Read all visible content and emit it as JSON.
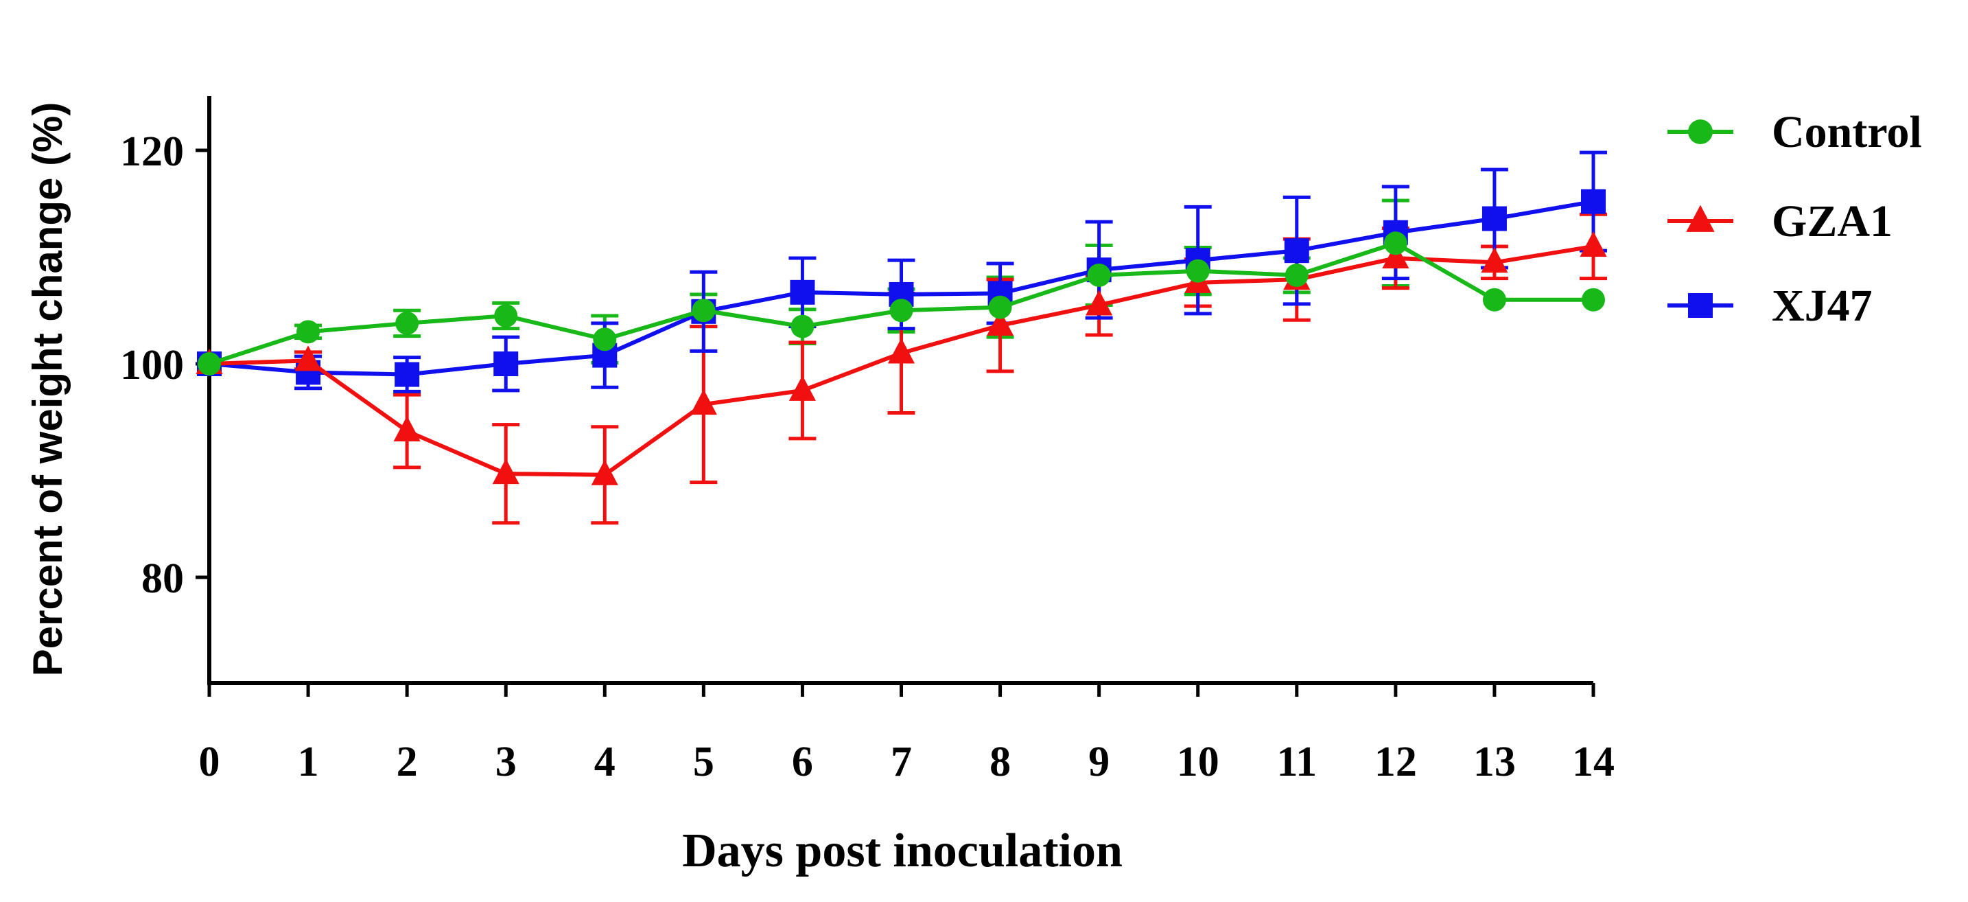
{
  "chart_data": {
    "type": "line",
    "title": "",
    "xlabel": "Days post inoculation",
    "ylabel": "Percent of weight change (%)",
    "x": [
      0,
      1,
      2,
      3,
      4,
      5,
      6,
      7,
      8,
      9,
      10,
      11,
      12,
      13,
      14
    ],
    "xlim": [
      0,
      14
    ],
    "ylim": [
      70,
      125
    ],
    "yticks": [
      80,
      100,
      120
    ],
    "grid": false,
    "legend_position": "right",
    "series": [
      {
        "name": "Control",
        "color": "#18B818",
        "marker": "circle",
        "values": [
          100,
          103,
          103.8,
          104.5,
          102.3,
          105,
          103.5,
          105,
          105.3,
          108.3,
          108.7,
          108.3,
          111.3,
          106,
          106
        ],
        "errors": [
          0,
          0.6,
          1.2,
          1.2,
          2.2,
          1.5,
          1.6,
          2.0,
          2.8,
          2.8,
          2.2,
          1.6,
          4.0,
          0,
          0
        ]
      },
      {
        "name": "GZA1",
        "color": "#F01010",
        "marker": "triangle",
        "values": [
          100,
          100.3,
          93.7,
          89.7,
          89.6,
          96.2,
          97.5,
          101,
          103.6,
          105.5,
          107.6,
          107.9,
          109.9,
          109.5,
          111
        ],
        "errors": [
          0,
          0.8,
          3.4,
          4.6,
          4.5,
          7.3,
          4.5,
          5.6,
          4.3,
          2.8,
          2.2,
          3.8,
          2.8,
          1.5,
          3.0
        ]
      },
      {
        "name": "XJ47",
        "color": "#1010EE",
        "marker": "square",
        "values": [
          100,
          99.2,
          99,
          100,
          100.8,
          104.9,
          106.7,
          106.5,
          106.6,
          108.8,
          109.7,
          110.6,
          112.3,
          113.6,
          115.2
        ],
        "errors": [
          0,
          1.5,
          1.6,
          2.5,
          3.0,
          3.7,
          3.2,
          3.2,
          2.8,
          4.5,
          5.0,
          5.0,
          4.3,
          4.6,
          4.6
        ]
      }
    ]
  }
}
